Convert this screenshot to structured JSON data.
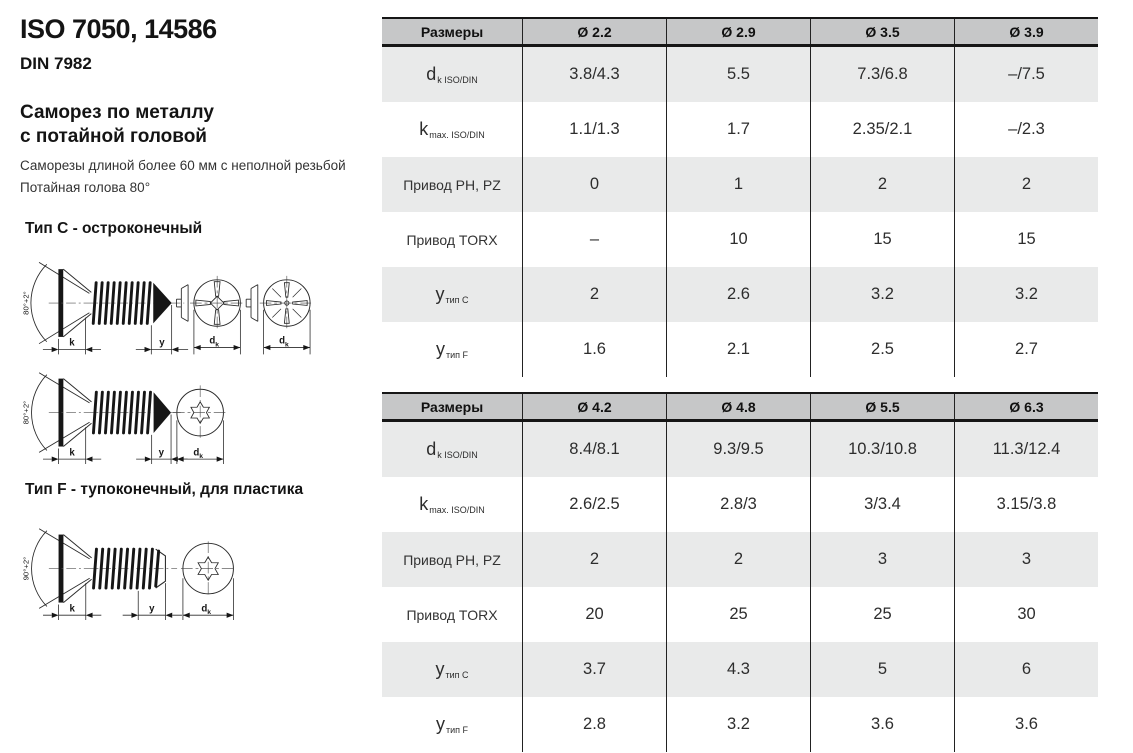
{
  "left_panel": {
    "title": "ISO 7050, 14586",
    "standard_din": "DIN 7982",
    "product_name_line1": "Саморез по металлу",
    "product_name_line2": "с потайной головой",
    "description_line1": "Саморезы длиной более 60 мм с неполной резьбой",
    "description_line2": "Потайная голова 80°",
    "type_c_heading": "Тип C - остроконечный",
    "type_f_heading": "Тип F - тупоконечный, для пластика"
  },
  "drawing_labels": {
    "angle_type_c": "80°+2°",
    "angle_type_f": "90°+2°",
    "k": "k",
    "y": "y",
    "d": "d",
    "d_sub": "k"
  },
  "tables": [
    {
      "header": [
        "Размеры",
        "Ø 2.2",
        "Ø 2.9",
        "Ø 3.5",
        "Ø 3.9"
      ],
      "rows": [
        {
          "label_main": "d",
          "label_sub": "k ISO/DIN",
          "values": [
            "3.8/4.3",
            "5.5",
            "7.3/6.8",
            "–/7.5"
          ]
        },
        {
          "label_main": "k",
          "label_sub": "max. ISO/DIN",
          "values": [
            "1.1/1.3",
            "1.7",
            "2.35/2.1",
            "–/2.3"
          ]
        },
        {
          "label_main": "Привод PH, PZ",
          "label_sub": "",
          "values": [
            "0",
            "1",
            "2",
            "2"
          ]
        },
        {
          "label_main": "Привод TORX",
          "label_sub": "",
          "values": [
            "–",
            "10",
            "15",
            "15"
          ]
        },
        {
          "label_main": "y",
          "label_sub": "тип C",
          "values": [
            "2",
            "2.6",
            "3.2",
            "3.2"
          ]
        },
        {
          "label_main": "y",
          "label_sub": "тип F",
          "values": [
            "1.6",
            "2.1",
            "2.5",
            "2.7"
          ]
        }
      ]
    },
    {
      "header": [
        "Размеры",
        "Ø 4.2",
        "Ø 4.8",
        "Ø 5.5",
        "Ø 6.3"
      ],
      "rows": [
        {
          "label_main": "d",
          "label_sub": "k ISO/DIN",
          "values": [
            "8.4/8.1",
            "9.3/9.5",
            "10.3/10.8",
            "11.3/12.4"
          ]
        },
        {
          "label_main": "k",
          "label_sub": "max. ISO/DIN",
          "values": [
            "2.6/2.5",
            "2.8/3",
            "3/3.4",
            "3.15/3.8"
          ]
        },
        {
          "label_main": "Привод PH, PZ",
          "label_sub": "",
          "values": [
            "2",
            "2",
            "3",
            "3"
          ]
        },
        {
          "label_main": "Привод TORX",
          "label_sub": "",
          "values": [
            "20",
            "25",
            "25",
            "30"
          ]
        },
        {
          "label_main": "y",
          "label_sub": "тип C",
          "values": [
            "3.7",
            "4.3",
            "5",
            "6"
          ]
        },
        {
          "label_main": "y",
          "label_sub": "тип F",
          "values": [
            "2.8",
            "3.2",
            "3.6",
            "3.6"
          ]
        }
      ]
    }
  ],
  "colors": {
    "header_bg": "#c6c7c8",
    "row_shaded_bg": "#e9eaea",
    "border": "#161616"
  }
}
